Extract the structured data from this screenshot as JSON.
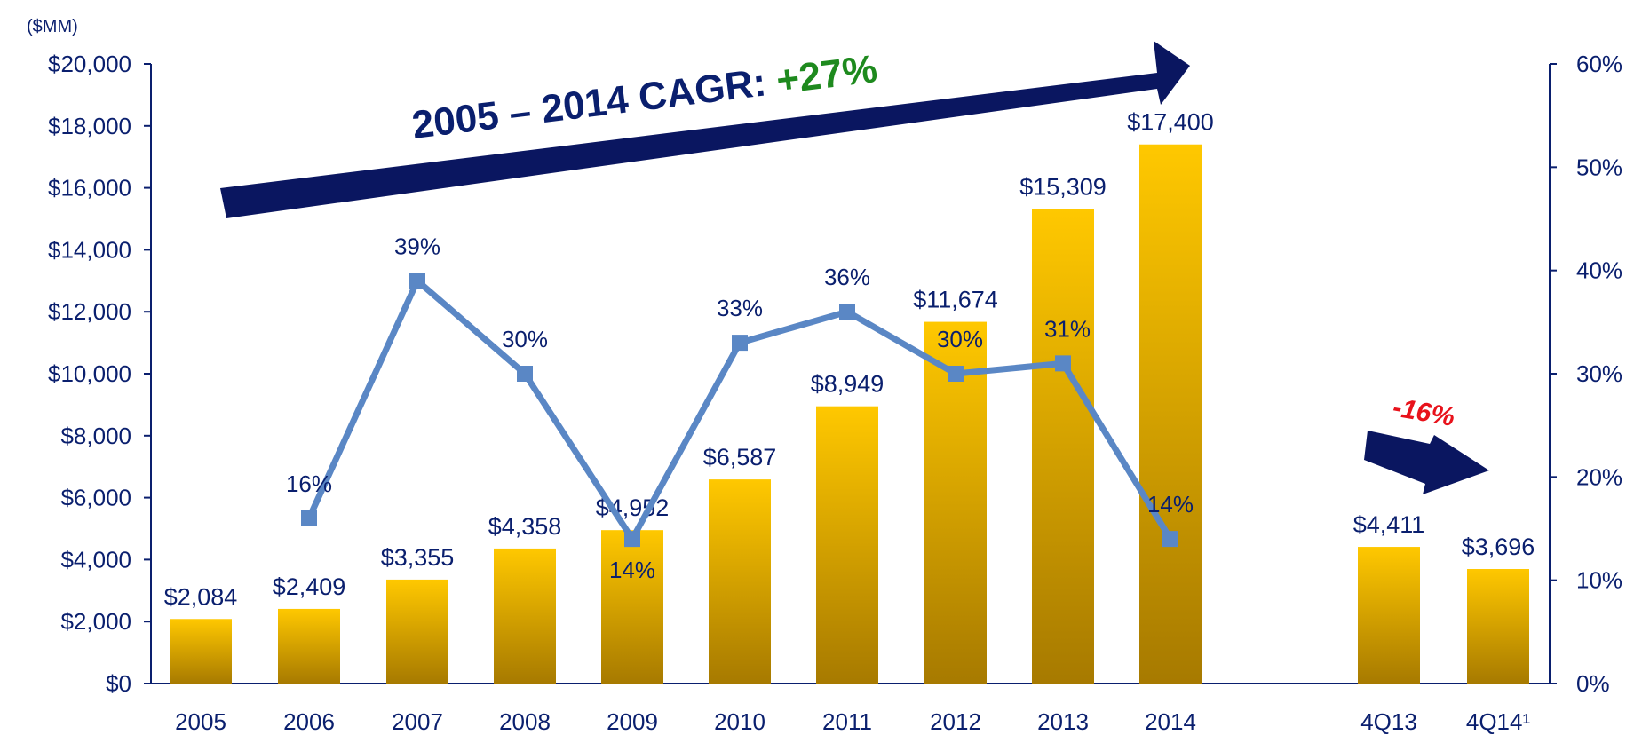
{
  "chart_data": {
    "type": "bar",
    "unit_label": "($MM)",
    "categories": [
      "2005",
      "2006",
      "2007",
      "2008",
      "2009",
      "2010",
      "2011",
      "2012",
      "2013",
      "2014",
      "4Q13",
      "4Q14¹"
    ],
    "series": [
      {
        "type": "bar",
        "axis": "left",
        "values": [
          2084,
          2409,
          3355,
          4358,
          4952,
          6587,
          8949,
          11674,
          15309,
          17400,
          4411,
          3696
        ],
        "labels": [
          "$2,084",
          "$2,409",
          "$3,355",
          "$4,358",
          "$4,952",
          "$6,587",
          "$8,949",
          "$11,674",
          "$15,309",
          "$17,400",
          "$4,411",
          "$3,696"
        ],
        "color_top": "#ffc800",
        "color_bottom": "#a77a00"
      },
      {
        "type": "line",
        "axis": "right",
        "values": [
          null,
          16,
          39,
          30,
          14,
          33,
          36,
          30,
          31,
          14,
          null,
          null
        ],
        "labels": [
          "",
          "16%",
          "39%",
          "30%",
          "14%",
          "33%",
          "36%",
          "30%",
          "31%",
          "14%",
          "",
          ""
        ],
        "color": "#5a87c5"
      }
    ],
    "y_left": {
      "ylim": [
        0,
        20000
      ],
      "ticks": [
        "$0",
        "$2,000",
        "$4,000",
        "$6,000",
        "$8,000",
        "$10,000",
        "$12,000",
        "$14,000",
        "$16,000",
        "$18,000",
        "$20,000"
      ]
    },
    "y_right": {
      "ylim": [
        0,
        60
      ],
      "ticks": [
        "0%",
        "10%",
        "20%",
        "30%",
        "40%",
        "50%",
        "60%"
      ]
    },
    "annotations": {
      "headline_text": "2005 – 2014 CAGR: ",
      "headline_value": "+27%",
      "change_text": "-16%",
      "arrow_color": "#0a1660"
    },
    "legend": "none",
    "grid": false
  }
}
